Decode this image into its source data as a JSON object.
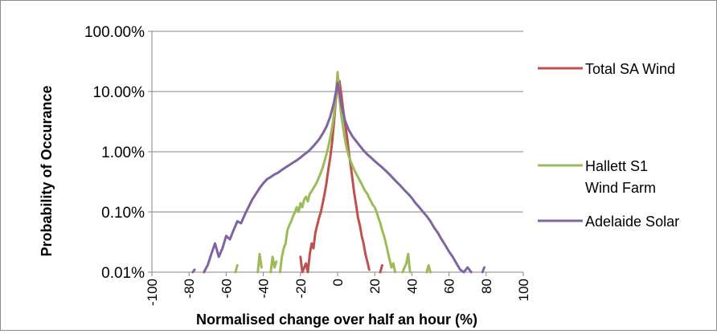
{
  "chart_data": {
    "type": "line",
    "title": "",
    "xlabel": "Normalised change over half an hour (%)",
    "ylabel": "Probability of Occurance",
    "xlim": [
      -100,
      100
    ],
    "ylim": [
      0.01,
      100
    ],
    "y_scale": "log",
    "x_ticks": [
      "-100",
      "-80",
      "-60",
      "-40",
      "-20",
      "0",
      "20",
      "40",
      "60",
      "80",
      "100"
    ],
    "y_ticks": [
      {
        "value": 100,
        "label": "100.00%"
      },
      {
        "value": 10,
        "label": "10.00%"
      },
      {
        "value": 1,
        "label": "1.00%"
      },
      {
        "value": 0.1,
        "label": "0.10%"
      },
      {
        "value": 0.01,
        "label": "0.01%"
      }
    ],
    "grid": "horizontal major gridlines",
    "legend_position": "right",
    "series": [
      {
        "name": "Total SA Wind",
        "color": "#c0504d",
        "points": [
          [
            -20,
            0.018
          ],
          [
            -19,
            0.01
          ],
          [
            -17,
            0.014
          ],
          [
            -16,
            0.01
          ],
          [
            -15,
            0.02
          ],
          [
            -14,
            0.03
          ],
          [
            -13,
            0.025
          ],
          [
            -12,
            0.045
          ],
          [
            -11,
            0.06
          ],
          [
            -10,
            0.08
          ],
          [
            -9,
            0.1
          ],
          [
            -8,
            0.14
          ],
          [
            -7,
            0.2
          ],
          [
            -6,
            0.3
          ],
          [
            -5,
            0.5
          ],
          [
            -4,
            0.8
          ],
          [
            -3,
            1.4
          ],
          [
            -2,
            3
          ],
          [
            -1,
            7
          ],
          [
            0,
            13
          ],
          [
            1,
            15
          ],
          [
            2,
            9
          ],
          [
            3,
            5
          ],
          [
            4,
            3
          ],
          [
            5,
            1.8
          ],
          [
            6,
            1
          ],
          [
            7,
            0.6
          ],
          [
            8,
            0.35
          ],
          [
            9,
            0.2
          ],
          [
            10,
            0.13
          ],
          [
            11,
            0.08
          ],
          [
            12,
            0.06
          ],
          [
            13,
            0.04
          ],
          [
            14,
            0.03
          ],
          [
            15,
            0.02
          ],
          [
            16,
            0.015
          ],
          [
            17,
            0.011
          ]
        ],
        "segments": [
          [
            [
              23,
              0.01
            ],
            [
              24,
              0.013
            ]
          ]
        ]
      },
      {
        "name": "Hallett S1 Wind Farm",
        "color": "#9bbb59",
        "points": [
          [
            -31,
            0.01
          ],
          [
            -30,
            0.018
          ],
          [
            -29,
            0.025
          ],
          [
            -28,
            0.03
          ],
          [
            -27,
            0.05
          ],
          [
            -26,
            0.06
          ],
          [
            -25,
            0.07
          ],
          [
            -24,
            0.085
          ],
          [
            -23,
            0.1
          ],
          [
            -22,
            0.12
          ],
          [
            -21,
            0.1
          ],
          [
            -20,
            0.14
          ],
          [
            -19,
            0.12
          ],
          [
            -18,
            0.16
          ],
          [
            -17,
            0.18
          ],
          [
            -16,
            0.15
          ],
          [
            -15,
            0.2
          ],
          [
            -14,
            0.22
          ],
          [
            -13,
            0.25
          ],
          [
            -12,
            0.28
          ],
          [
            -11,
            0.32
          ],
          [
            -10,
            0.38
          ],
          [
            -9,
            0.45
          ],
          [
            -8,
            0.55
          ],
          [
            -7,
            0.7
          ],
          [
            -6,
            0.9
          ],
          [
            -5,
            1.2
          ],
          [
            -4,
            1.7
          ],
          [
            -3,
            2.5
          ],
          [
            -2,
            4
          ],
          [
            -1,
            8
          ],
          [
            0,
            21
          ],
          [
            1,
            8
          ],
          [
            2,
            4
          ],
          [
            3,
            2.5
          ],
          [
            4,
            1.6
          ],
          [
            5,
            1.1
          ],
          [
            6,
            0.85
          ],
          [
            7,
            0.7
          ],
          [
            8,
            0.58
          ],
          [
            9,
            0.5
          ],
          [
            10,
            0.43
          ],
          [
            11,
            0.38
          ],
          [
            12,
            0.33
          ],
          [
            13,
            0.29
          ],
          [
            14,
            0.25
          ],
          [
            15,
            0.22
          ],
          [
            16,
            0.2
          ],
          [
            17,
            0.17
          ],
          [
            18,
            0.15
          ],
          [
            19,
            0.13
          ],
          [
            20,
            0.12
          ],
          [
            21,
            0.1
          ],
          [
            22,
            0.08
          ],
          [
            23,
            0.065
          ],
          [
            24,
            0.05
          ],
          [
            25,
            0.04
          ],
          [
            26,
            0.03
          ],
          [
            27,
            0.022
          ],
          [
            28,
            0.016
          ],
          [
            29,
            0.012
          ],
          [
            30,
            0.014
          ],
          [
            31,
            0.01
          ]
        ],
        "segments": [
          [
            [
              -55,
              0.01
            ],
            [
              -54,
              0.013
            ]
          ],
          [
            [
              -43,
              0.01
            ],
            [
              -42,
              0.02
            ],
            [
              -41,
              0.012
            ]
          ],
          [
            [
              -36,
              0.01
            ],
            [
              -35,
              0.018
            ],
            [
              -34,
              0.012
            ],
            [
              -33,
              0.015
            ]
          ],
          [
            [
              35,
              0.01
            ],
            [
              36,
              0.012
            ],
            [
              37,
              0.014
            ],
            [
              38,
              0.02
            ],
            [
              39,
              0.01
            ]
          ],
          [
            [
              48,
              0.01
            ],
            [
              49,
              0.013
            ],
            [
              50,
              0.01
            ]
          ]
        ]
      },
      {
        "name": "Adelaide Solar",
        "color": "#8064a2",
        "points": [
          [
            -72,
            0.01
          ],
          [
            -70,
            0.013
          ],
          [
            -68,
            0.02
          ],
          [
            -66,
            0.03
          ],
          [
            -64,
            0.018
          ],
          [
            -62,
            0.025
          ],
          [
            -60,
            0.04
          ],
          [
            -58,
            0.035
          ],
          [
            -56,
            0.05
          ],
          [
            -54,
            0.07
          ],
          [
            -52,
            0.065
          ],
          [
            -50,
            0.09
          ],
          [
            -48,
            0.12
          ],
          [
            -46,
            0.16
          ],
          [
            -44,
            0.2
          ],
          [
            -42,
            0.25
          ],
          [
            -40,
            0.3
          ],
          [
            -38,
            0.35
          ],
          [
            -36,
            0.38
          ],
          [
            -34,
            0.42
          ],
          [
            -32,
            0.45
          ],
          [
            -30,
            0.5
          ],
          [
            -28,
            0.55
          ],
          [
            -26,
            0.6
          ],
          [
            -24,
            0.66
          ],
          [
            -22,
            0.72
          ],
          [
            -20,
            0.8
          ],
          [
            -18,
            0.9
          ],
          [
            -16,
            1.0
          ],
          [
            -14,
            1.15
          ],
          [
            -12,
            1.35
          ],
          [
            -10,
            1.6
          ],
          [
            -8,
            2
          ],
          [
            -6,
            2.6
          ],
          [
            -4,
            3.8
          ],
          [
            -2,
            6.5
          ],
          [
            0,
            14
          ],
          [
            2,
            6
          ],
          [
            4,
            3.3
          ],
          [
            6,
            2.3
          ],
          [
            8,
            1.8
          ],
          [
            10,
            1.5
          ],
          [
            12,
            1.25
          ],
          [
            14,
            1.05
          ],
          [
            16,
            0.9
          ],
          [
            18,
            0.8
          ],
          [
            20,
            0.7
          ],
          [
            22,
            0.62
          ],
          [
            24,
            0.55
          ],
          [
            26,
            0.48
          ],
          [
            28,
            0.42
          ],
          [
            30,
            0.36
          ],
          [
            32,
            0.31
          ],
          [
            34,
            0.27
          ],
          [
            36,
            0.23
          ],
          [
            38,
            0.2
          ],
          [
            40,
            0.17
          ],
          [
            42,
            0.14
          ],
          [
            44,
            0.12
          ],
          [
            46,
            0.1
          ],
          [
            48,
            0.085
          ],
          [
            50,
            0.07
          ],
          [
            52,
            0.055
          ],
          [
            54,
            0.045
          ],
          [
            56,
            0.035
          ],
          [
            58,
            0.028
          ],
          [
            60,
            0.022
          ],
          [
            62,
            0.018
          ],
          [
            64,
            0.014
          ],
          [
            66,
            0.011
          ],
          [
            68,
            0.01
          ],
          [
            70,
            0.012
          ],
          [
            72,
            0.01
          ]
        ],
        "segments": [
          [
            [
              -78,
              0.01
            ],
            [
              -77,
              0.011
            ]
          ],
          [
            [
              78,
              0.01
            ],
            [
              79,
              0.012
            ]
          ]
        ]
      }
    ]
  }
}
